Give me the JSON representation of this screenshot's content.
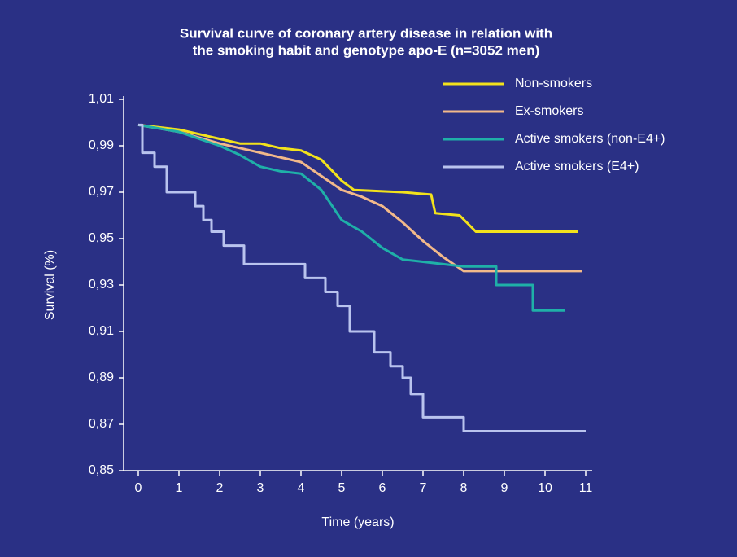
{
  "chart_data": {
    "type": "line",
    "title": [
      "Survival curve of coronary artery disease in relation with",
      "the smoking habit and genotype apo-E (n=3052 men)"
    ],
    "xlabel": "Time (years)",
    "ylabel": "Survival (%)",
    "xlim": [
      -0.36,
      11.16
    ],
    "ylim": [
      0.85,
      1.01
    ],
    "xticks": [
      0,
      1,
      2,
      3,
      4,
      5,
      6,
      7,
      8,
      9,
      10,
      11
    ],
    "yticks": [
      {
        "value": 0.85,
        "label": "0,85"
      },
      {
        "value": 0.87,
        "label": "0,87"
      },
      {
        "value": 0.89,
        "label": "0,89"
      },
      {
        "value": 0.91,
        "label": "0,91"
      },
      {
        "value": 0.93,
        "label": "0,93"
      },
      {
        "value": 0.95,
        "label": "0,95"
      },
      {
        "value": 0.97,
        "label": "0,97"
      },
      {
        "value": 0.99,
        "label": "0,99"
      },
      {
        "value": 1.01,
        "label": "1,01"
      }
    ],
    "grid": false,
    "legend": "top-right",
    "series": [
      {
        "name": "Non-smokers",
        "color": "#f2e21c",
        "x": [
          0,
          1,
          2,
          2.5,
          3,
          3.5,
          4,
          4.5,
          5,
          5.3,
          6.5,
          7.2,
          7.3,
          7.9,
          8.3,
          10.8
        ],
        "values": [
          0.999,
          0.997,
          0.993,
          0.991,
          0.991,
          0.989,
          0.988,
          0.984,
          0.975,
          0.971,
          0.97,
          0.969,
          0.961,
          0.96,
          0.953,
          0.953
        ]
      },
      {
        "name": "Ex-smokers",
        "color": "#f2b98a",
        "x": [
          0,
          1,
          2,
          3,
          4,
          4.5,
          5,
          5.5,
          6,
          6.5,
          7,
          7.5,
          8,
          10.9
        ],
        "values": [
          0.999,
          0.996,
          0.991,
          0.987,
          0.983,
          0.977,
          0.971,
          0.968,
          0.964,
          0.957,
          0.949,
          0.942,
          0.936,
          0.936
        ]
      },
      {
        "name": "Active smokers (non-E4+)",
        "color": "#1fb0a8",
        "x": [
          0,
          1,
          2,
          2.5,
          3,
          3.5,
          4,
          4.5,
          5,
          5.5,
          6,
          6.5,
          7,
          7.5,
          8,
          8.8,
          8.8,
          9.7,
          9.7,
          10.5
        ],
        "values": [
          0.999,
          0.996,
          0.99,
          0.986,
          0.981,
          0.979,
          0.978,
          0.971,
          0.958,
          0.953,
          0.946,
          0.941,
          0.94,
          0.939,
          0.938,
          0.938,
          0.93,
          0.93,
          0.919,
          0.919
        ]
      },
      {
        "name": "Active smokers (E4+)",
        "color": "#b9c3ee",
        "x": [
          0,
          0.1,
          0.1,
          0.4,
          0.4,
          0.7,
          0.7,
          1.4,
          1.4,
          1.6,
          1.6,
          1.8,
          1.8,
          2.1,
          2.1,
          2.6,
          2.6,
          4.1,
          4.1,
          4.6,
          4.6,
          4.9,
          4.9,
          5.2,
          5.2,
          5.8,
          5.8,
          6.2,
          6.2,
          6.5,
          6.5,
          6.7,
          6.7,
          7.0,
          7.0,
          8.0,
          8.0,
          11.0
        ],
        "values": [
          0.999,
          0.999,
          0.987,
          0.987,
          0.981,
          0.981,
          0.97,
          0.97,
          0.964,
          0.964,
          0.958,
          0.958,
          0.953,
          0.953,
          0.947,
          0.947,
          0.939,
          0.939,
          0.933,
          0.933,
          0.927,
          0.927,
          0.921,
          0.921,
          0.91,
          0.91,
          0.901,
          0.901,
          0.895,
          0.895,
          0.89,
          0.89,
          0.883,
          0.883,
          0.873,
          0.873,
          0.867,
          0.867
        ]
      }
    ]
  }
}
